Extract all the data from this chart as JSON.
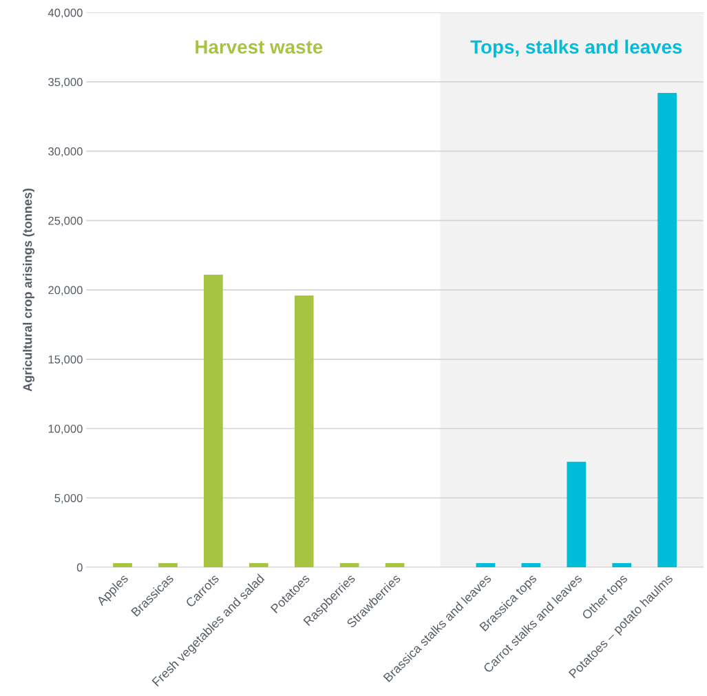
{
  "chart_data": {
    "type": "bar",
    "ylabel": "Agricultural crop arisings (tonnes)",
    "categories": [
      "Apples",
      "Brassicas",
      "Carrots",
      "Fresh vegetables and salad",
      "Potatoes",
      "Raspberries",
      "Strawberries",
      null,
      "Brassica stalks and leaves",
      "Brassica tops",
      "Carrot stalks and leaves",
      "Other tops",
      "Potatoes – potato haulms"
    ],
    "series": [
      {
        "name": "Harvest waste",
        "color": "#a6c441",
        "values": [
          300,
          300,
          21100,
          300,
          19600,
          300,
          300,
          null,
          null,
          null,
          null,
          null,
          null
        ]
      },
      {
        "name": "Tops, stalks and leaves",
        "color": "#00bcd9",
        "values": [
          null,
          null,
          null,
          null,
          null,
          null,
          null,
          null,
          300,
          300,
          7600,
          300,
          34200
        ]
      }
    ],
    "ylim": [
      0,
      40000
    ],
    "yticks": [
      0,
      {
        "value": 5000,
        "label": "5,000"
      },
      {
        "value": 10000,
        "label": "10,000"
      },
      {
        "value": 15000,
        "label": "15,000"
      },
      {
        "value": 20000,
        "label": "20,000"
      },
      {
        "value": 25000,
        "label": "25,000"
      },
      {
        "value": 30000,
        "label": "30,000"
      },
      {
        "value": 35000,
        "label": "35,000"
      },
      {
        "value": 40000,
        "label": "40,000"
      }
    ],
    "grid": "y",
    "legend": false
  }
}
